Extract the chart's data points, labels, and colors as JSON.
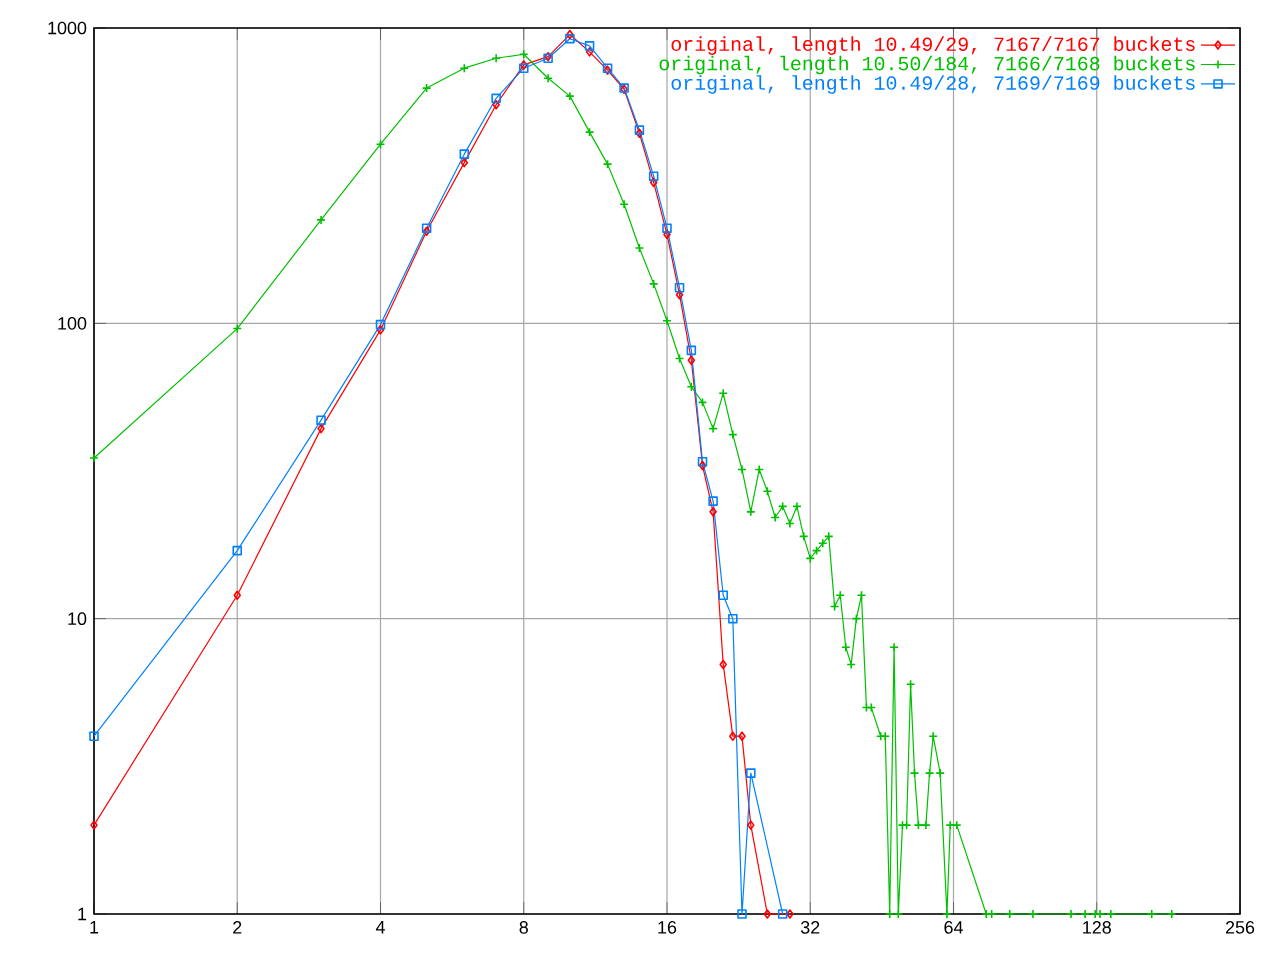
{
  "chart_data": {
    "type": "line",
    "log": "xy",
    "grid": true,
    "legend": "top right",
    "xlim": [
      1,
      256
    ],
    "ylim": [
      1,
      1000
    ],
    "xticks": [
      1,
      2,
      4,
      8,
      16,
      32,
      64,
      128,
      256
    ],
    "yticks": [
      1,
      10,
      100,
      1000
    ],
    "series": [
      {
        "name": "original, length 10.49/29, 7167/7167 buckets",
        "color": "#ff0000",
        "marker": "diamond",
        "x": [
          1,
          2,
          3,
          4,
          5,
          6,
          7,
          8,
          9,
          10,
          11,
          12,
          13,
          14,
          15,
          16,
          17,
          18,
          19,
          20,
          21,
          22,
          23,
          24,
          26,
          29
        ],
        "values": [
          2,
          12,
          44,
          95,
          205,
          350,
          550,
          750,
          800,
          950,
          830,
          720,
          620,
          440,
          300,
          200,
          125,
          75,
          33,
          23,
          7,
          4,
          4,
          2,
          1,
          1
        ]
      },
      {
        "name": "original, length 10.50/184, 7166/7168 buckets",
        "color": "#00c000",
        "marker": "cross",
        "x": [
          1,
          2,
          3,
          4,
          5,
          6,
          7,
          8,
          9,
          10,
          11,
          12,
          13,
          14,
          15,
          16,
          17,
          18,
          19,
          20,
          21,
          22,
          23,
          24,
          25,
          26,
          27,
          28,
          29,
          30,
          31,
          32,
          33,
          34,
          35,
          36,
          37,
          38,
          39,
          40,
          41,
          42,
          43,
          45,
          46,
          47,
          48,
          49,
          50,
          51,
          52,
          53,
          54,
          56,
          57,
          58,
          60,
          62,
          63,
          65,
          75,
          77,
          84,
          94,
          113,
          121,
          127,
          130,
          137,
          167,
          184
        ],
        "values": [
          35,
          96,
          224,
          404,
          626,
          731,
          790,
          815,
          676,
          588,
          444,
          346,
          253,
          180,
          136,
          102,
          76,
          61,
          54,
          44,
          58,
          42,
          32,
          23,
          32,
          27,
          22,
          24,
          21,
          24,
          19,
          16,
          17,
          18,
          19,
          11,
          12,
          8,
          7,
          10,
          12,
          5,
          5,
          4,
          4,
          1,
          8,
          1,
          2,
          2,
          6,
          3,
          2,
          2,
          3,
          4,
          3,
          1,
          2,
          2,
          1,
          1,
          1,
          1,
          1,
          1,
          1,
          1,
          1,
          1,
          1
        ]
      },
      {
        "name": "original, length 10.49/28, 7169/7169 buckets",
        "color": "#0080ff",
        "marker": "square",
        "x": [
          1,
          2,
          3,
          4,
          5,
          6,
          7,
          8,
          9,
          10,
          11,
          12,
          13,
          14,
          15,
          16,
          17,
          18,
          19,
          20,
          21,
          22,
          23,
          24,
          28
        ],
        "values": [
          4,
          17,
          47,
          99,
          210,
          374,
          578,
          731,
          790,
          920,
          870,
          731,
          626,
          451,
          315,
          210,
          132,
          81,
          34,
          25,
          12,
          10,
          1,
          3,
          1
        ]
      }
    ]
  }
}
